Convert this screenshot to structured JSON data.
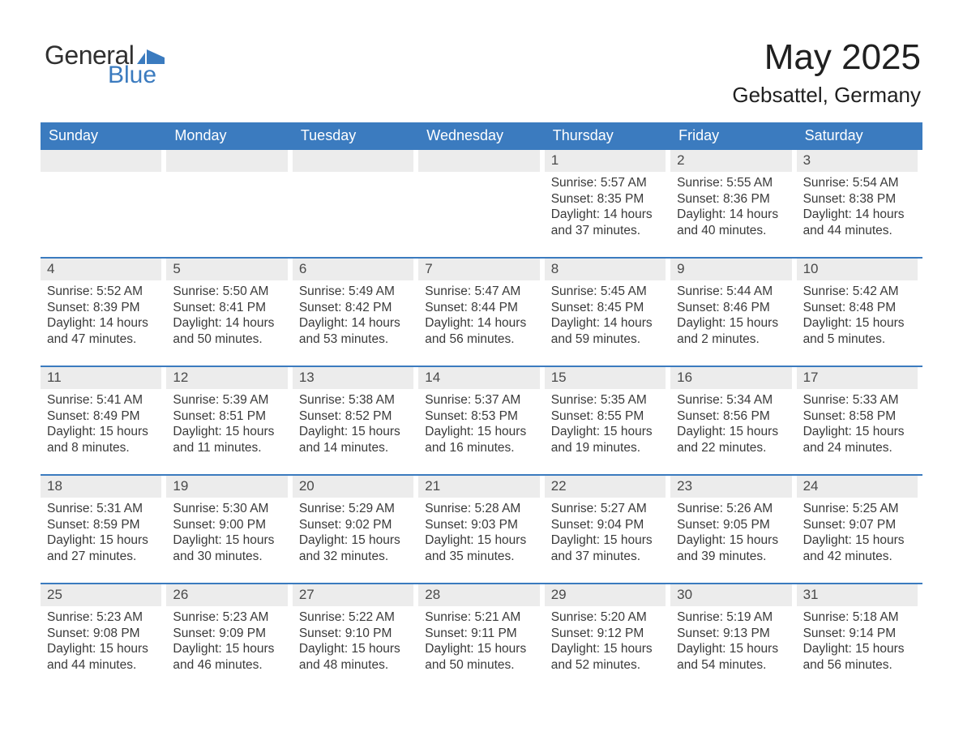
{
  "logo": {
    "general": "General",
    "blue": "Blue",
    "flag_color": "#3b7bbf",
    "text_dark": "#303030"
  },
  "title": "May 2025",
  "location": "Gebsattel, Germany",
  "header_bg": "#3b7bbf",
  "header_fg": "#ffffff",
  "band_bg": "#ececec",
  "divider_color": "#3b7bbf",
  "page_bg": "#ffffff",
  "text_color": "#3a3a3a",
  "font_family": "Arial, Helvetica, sans-serif",
  "day_names": [
    "Sunday",
    "Monday",
    "Tuesday",
    "Wednesday",
    "Thursday",
    "Friday",
    "Saturday"
  ],
  "weeks": [
    [
      {
        "empty": true
      },
      {
        "empty": true
      },
      {
        "empty": true
      },
      {
        "empty": true
      },
      {
        "n": "1",
        "sunrise": "5:57 AM",
        "sunset": "8:35 PM",
        "daylight": "14 hours and 37 minutes."
      },
      {
        "n": "2",
        "sunrise": "5:55 AM",
        "sunset": "8:36 PM",
        "daylight": "14 hours and 40 minutes."
      },
      {
        "n": "3",
        "sunrise": "5:54 AM",
        "sunset": "8:38 PM",
        "daylight": "14 hours and 44 minutes."
      }
    ],
    [
      {
        "n": "4",
        "sunrise": "5:52 AM",
        "sunset": "8:39 PM",
        "daylight": "14 hours and 47 minutes."
      },
      {
        "n": "5",
        "sunrise": "5:50 AM",
        "sunset": "8:41 PM",
        "daylight": "14 hours and 50 minutes."
      },
      {
        "n": "6",
        "sunrise": "5:49 AM",
        "sunset": "8:42 PM",
        "daylight": "14 hours and 53 minutes."
      },
      {
        "n": "7",
        "sunrise": "5:47 AM",
        "sunset": "8:44 PM",
        "daylight": "14 hours and 56 minutes."
      },
      {
        "n": "8",
        "sunrise": "5:45 AM",
        "sunset": "8:45 PM",
        "daylight": "14 hours and 59 minutes."
      },
      {
        "n": "9",
        "sunrise": "5:44 AM",
        "sunset": "8:46 PM",
        "daylight": "15 hours and 2 minutes."
      },
      {
        "n": "10",
        "sunrise": "5:42 AM",
        "sunset": "8:48 PM",
        "daylight": "15 hours and 5 minutes."
      }
    ],
    [
      {
        "n": "11",
        "sunrise": "5:41 AM",
        "sunset": "8:49 PM",
        "daylight": "15 hours and 8 minutes."
      },
      {
        "n": "12",
        "sunrise": "5:39 AM",
        "sunset": "8:51 PM",
        "daylight": "15 hours and 11 minutes."
      },
      {
        "n": "13",
        "sunrise": "5:38 AM",
        "sunset": "8:52 PM",
        "daylight": "15 hours and 14 minutes."
      },
      {
        "n": "14",
        "sunrise": "5:37 AM",
        "sunset": "8:53 PM",
        "daylight": "15 hours and 16 minutes."
      },
      {
        "n": "15",
        "sunrise": "5:35 AM",
        "sunset": "8:55 PM",
        "daylight": "15 hours and 19 minutes."
      },
      {
        "n": "16",
        "sunrise": "5:34 AM",
        "sunset": "8:56 PM",
        "daylight": "15 hours and 22 minutes."
      },
      {
        "n": "17",
        "sunrise": "5:33 AM",
        "sunset": "8:58 PM",
        "daylight": "15 hours and 24 minutes."
      }
    ],
    [
      {
        "n": "18",
        "sunrise": "5:31 AM",
        "sunset": "8:59 PM",
        "daylight": "15 hours and 27 minutes."
      },
      {
        "n": "19",
        "sunrise": "5:30 AM",
        "sunset": "9:00 PM",
        "daylight": "15 hours and 30 minutes."
      },
      {
        "n": "20",
        "sunrise": "5:29 AM",
        "sunset": "9:02 PM",
        "daylight": "15 hours and 32 minutes."
      },
      {
        "n": "21",
        "sunrise": "5:28 AM",
        "sunset": "9:03 PM",
        "daylight": "15 hours and 35 minutes."
      },
      {
        "n": "22",
        "sunrise": "5:27 AM",
        "sunset": "9:04 PM",
        "daylight": "15 hours and 37 minutes."
      },
      {
        "n": "23",
        "sunrise": "5:26 AM",
        "sunset": "9:05 PM",
        "daylight": "15 hours and 39 minutes."
      },
      {
        "n": "24",
        "sunrise": "5:25 AM",
        "sunset": "9:07 PM",
        "daylight": "15 hours and 42 minutes."
      }
    ],
    [
      {
        "n": "25",
        "sunrise": "5:23 AM",
        "sunset": "9:08 PM",
        "daylight": "15 hours and 44 minutes."
      },
      {
        "n": "26",
        "sunrise": "5:23 AM",
        "sunset": "9:09 PM",
        "daylight": "15 hours and 46 minutes."
      },
      {
        "n": "27",
        "sunrise": "5:22 AM",
        "sunset": "9:10 PM",
        "daylight": "15 hours and 48 minutes."
      },
      {
        "n": "28",
        "sunrise": "5:21 AM",
        "sunset": "9:11 PM",
        "daylight": "15 hours and 50 minutes."
      },
      {
        "n": "29",
        "sunrise": "5:20 AM",
        "sunset": "9:12 PM",
        "daylight": "15 hours and 52 minutes."
      },
      {
        "n": "30",
        "sunrise": "5:19 AM",
        "sunset": "9:13 PM",
        "daylight": "15 hours and 54 minutes."
      },
      {
        "n": "31",
        "sunrise": "5:18 AM",
        "sunset": "9:14 PM",
        "daylight": "15 hours and 56 minutes."
      }
    ]
  ],
  "labels": {
    "sunrise": "Sunrise: ",
    "sunset": "Sunset: ",
    "daylight": "Daylight: "
  }
}
